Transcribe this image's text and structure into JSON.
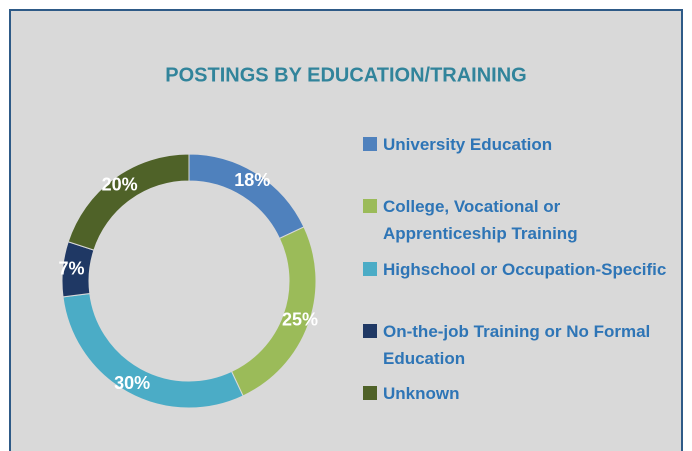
{
  "chart_data": {
    "type": "donut",
    "title": "POSTINGS BY EDUCATION/TRAINING",
    "categories": [
      "University Education",
      "College, Vocational or Apprenticeship Training",
      "Highschool or Occupation-Specific",
      "On-the-job Training or No Formal Education",
      "Unknown"
    ],
    "values": [
      18,
      25,
      30,
      7,
      20
    ],
    "value_labels": [
      "18%",
      "25%",
      "30%",
      "7%",
      "20%"
    ],
    "colors": [
      "#4f81bd",
      "#9bbb59",
      "#4bacc6",
      "#1f3864",
      "#4f6228"
    ],
    "legend": "right"
  }
}
